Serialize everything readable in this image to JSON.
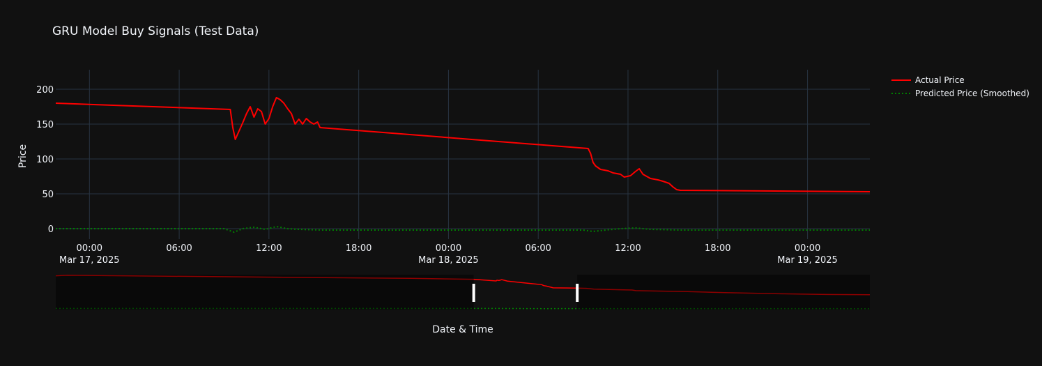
{
  "chart_data": {
    "type": "line",
    "title": "GRU Model Buy Signals (Test Data)",
    "xlabel": "Date & Time",
    "ylabel": "Price",
    "ylim": [
      -15,
      228
    ],
    "y_ticks": [
      0,
      50,
      100,
      150,
      200
    ],
    "x_range": [
      "2025-03-16 21:45",
      "2025-03-19 04:10"
    ],
    "x_ticks": [
      {
        "t": "2025-03-17 00:00",
        "label": "00:00",
        "sublabel": "Mar 17, 2025"
      },
      {
        "t": "2025-03-17 06:00",
        "label": "06:00",
        "sublabel": ""
      },
      {
        "t": "2025-03-17 12:00",
        "label": "12:00",
        "sublabel": ""
      },
      {
        "t": "2025-03-17 18:00",
        "label": "18:00",
        "sublabel": ""
      },
      {
        "t": "2025-03-18 00:00",
        "label": "00:00",
        "sublabel": "Mar 18, 2025"
      },
      {
        "t": "2025-03-18 06:00",
        "label": "06:00",
        "sublabel": ""
      },
      {
        "t": "2025-03-18 12:00",
        "label": "12:00",
        "sublabel": ""
      },
      {
        "t": "2025-03-18 18:00",
        "label": "18:00",
        "sublabel": ""
      },
      {
        "t": "2025-03-19 00:00",
        "label": "00:00",
        "sublabel": "Mar 19, 2025"
      }
    ],
    "grid": true,
    "legend_position": "top-right",
    "series": [
      {
        "name": "Actual Price",
        "color": "#ff0000",
        "dash": "solid",
        "points": [
          [
            "2025-03-16 21:45",
            180
          ],
          [
            "2025-03-17 09:25",
            171
          ],
          [
            "2025-03-17 09:35",
            145
          ],
          [
            "2025-03-17 09:45",
            128
          ],
          [
            "2025-03-17 10:00",
            140
          ],
          [
            "2025-03-17 10:15",
            152
          ],
          [
            "2025-03-17 10:30",
            165
          ],
          [
            "2025-03-17 10:45",
            175
          ],
          [
            "2025-03-17 11:00",
            160
          ],
          [
            "2025-03-17 11:15",
            172
          ],
          [
            "2025-03-17 11:30",
            168
          ],
          [
            "2025-03-17 11:45",
            150
          ],
          [
            "2025-03-17 12:00",
            158
          ],
          [
            "2025-03-17 12:15",
            175
          ],
          [
            "2025-03-17 12:30",
            188
          ],
          [
            "2025-03-17 12:45",
            185
          ],
          [
            "2025-03-17 13:00",
            180
          ],
          [
            "2025-03-17 13:15",
            172
          ],
          [
            "2025-03-17 13:30",
            165
          ],
          [
            "2025-03-17 13:45",
            150
          ],
          [
            "2025-03-17 14:00",
            157
          ],
          [
            "2025-03-17 14:15",
            150
          ],
          [
            "2025-03-17 14:30",
            158
          ],
          [
            "2025-03-17 14:45",
            153
          ],
          [
            "2025-03-17 15:00",
            150
          ],
          [
            "2025-03-17 15:15",
            153
          ],
          [
            "2025-03-17 15:25",
            145
          ],
          [
            "2025-03-18 09:20",
            115
          ],
          [
            "2025-03-18 09:30",
            108
          ],
          [
            "2025-03-18 09:40",
            95
          ],
          [
            "2025-03-18 09:50",
            90
          ],
          [
            "2025-03-18 10:10",
            85
          ],
          [
            "2025-03-18 10:40",
            83
          ],
          [
            "2025-03-18 11:00",
            80
          ],
          [
            "2025-03-18 11:30",
            78
          ],
          [
            "2025-03-18 11:45",
            74
          ],
          [
            "2025-03-18 12:10",
            76
          ],
          [
            "2025-03-18 12:30",
            82
          ],
          [
            "2025-03-18 12:45",
            86
          ],
          [
            "2025-03-18 13:00",
            78
          ],
          [
            "2025-03-18 13:30",
            72
          ],
          [
            "2025-03-18 14:00",
            70
          ],
          [
            "2025-03-18 14:20",
            68
          ],
          [
            "2025-03-18 14:45",
            65
          ],
          [
            "2025-03-18 15:00",
            60
          ],
          [
            "2025-03-18 15:15",
            56
          ],
          [
            "2025-03-18 15:30",
            55
          ],
          [
            "2025-03-19 04:10",
            53
          ]
        ]
      },
      {
        "name": "Predicted Price (Smoothed)",
        "color": "#008000",
        "dash": "dot",
        "points": [
          [
            "2025-03-16 21:45",
            0
          ],
          [
            "2025-03-17 09:00",
            0
          ],
          [
            "2025-03-17 09:40",
            -5
          ],
          [
            "2025-03-17 10:15",
            0
          ],
          [
            "2025-03-17 11:00",
            2
          ],
          [
            "2025-03-17 11:45",
            -1
          ],
          [
            "2025-03-17 12:30",
            3
          ],
          [
            "2025-03-17 13:15",
            0
          ],
          [
            "2025-03-17 14:00",
            -1
          ],
          [
            "2025-03-17 15:30",
            -2
          ],
          [
            "2025-03-18 09:00",
            -2
          ],
          [
            "2025-03-18 09:40",
            -4
          ],
          [
            "2025-03-18 10:30",
            -2
          ],
          [
            "2025-03-18 11:30",
            0
          ],
          [
            "2025-03-18 12:30",
            1
          ],
          [
            "2025-03-18 13:30",
            -1
          ],
          [
            "2025-03-18 15:30",
            -2
          ],
          [
            "2025-03-19 04:10",
            -2
          ]
        ]
      }
    ],
    "rangeslider": {
      "full_range": [
        "2025-03-07 18:00",
        "2025-03-25 14:00"
      ],
      "selected_range": [
        "2025-03-16 21:45",
        "2025-03-19 04:10"
      ],
      "series": [
        {
          "name": "Actual Price",
          "points": [
            [
              "2025-03-07 18:00",
              425
            ],
            [
              "2025-03-08 00:00",
              432
            ],
            [
              "2025-03-15 12:30",
              392
            ],
            [
              "2025-03-16 21:45",
              380
            ],
            [
              "2025-03-17 09:30",
              358
            ],
            [
              "2025-03-17 10:00",
              368
            ],
            [
              "2025-03-17 11:00",
              364
            ],
            [
              "2025-03-17 12:30",
              375
            ],
            [
              "2025-03-17 15:30",
              356
            ],
            [
              "2025-03-18 09:30",
              310
            ],
            [
              "2025-03-18 10:30",
              297
            ],
            [
              "2025-03-18 12:00",
              291
            ],
            [
              "2025-03-18 15:30",
              268
            ],
            [
              "2025-03-19 04:10",
              265
            ],
            [
              "2025-03-19 09:00",
              262
            ],
            [
              "2025-03-19 13:00",
              252
            ],
            [
              "2025-03-19 15:00",
              250
            ],
            [
              "2025-03-20 09:00",
              240
            ],
            [
              "2025-03-20 11:00",
              232
            ],
            [
              "2025-03-20 15:00",
              230
            ],
            [
              "2025-03-21 14:00",
              220
            ],
            [
              "2025-03-22 10:00",
              205
            ],
            [
              "2025-03-23 12:00",
              192
            ],
            [
              "2025-03-24 15:00",
              182
            ],
            [
              "2025-03-25 14:00",
              178
            ]
          ]
        },
        {
          "name": "Predicted Price (Smoothed)",
          "points": [
            [
              "2025-03-07 18:00",
              0
            ],
            [
              "2025-03-17 10:00",
              0
            ],
            [
              "2025-03-18 10:00",
              -3
            ],
            [
              "2025-03-20 00:00",
              -2
            ],
            [
              "2025-03-25 14:00",
              -3
            ]
          ]
        }
      ]
    }
  }
}
